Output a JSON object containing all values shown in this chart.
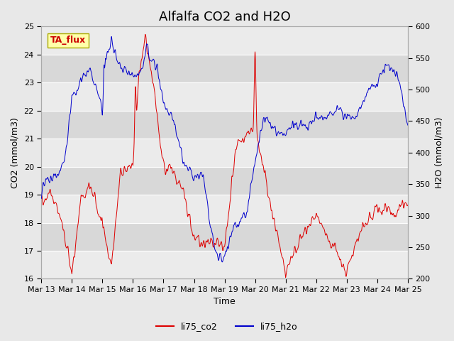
{
  "title": "Alfalfa CO2 and H2O",
  "xlabel": "Time",
  "ylabel_left": "CO2 (mmol/m3)",
  "ylabel_right": "H2O (mmol/m3)",
  "co2_ylim": [
    16.0,
    25.0
  ],
  "h2o_ylim": [
    200,
    600
  ],
  "co2_yticks": [
    16.0,
    17.0,
    18.0,
    19.0,
    20.0,
    21.0,
    22.0,
    23.0,
    24.0,
    25.0
  ],
  "h2o_yticks": [
    200,
    250,
    300,
    350,
    400,
    450,
    500,
    550,
    600
  ],
  "co2_color": "#dd0000",
  "h2o_color": "#0000cc",
  "background_color": "#e8e8e8",
  "plot_bg_color": "#d8d8d8",
  "grid_color": "#ffffff",
  "annotation_text": "TA_flux",
  "annotation_bg": "#ffffaa",
  "annotation_edge": "#aaaa00",
  "legend_co2": "li75_co2",
  "legend_h2o": "li75_h2o",
  "title_fontsize": 13,
  "axis_label_fontsize": 9,
  "tick_fontsize": 8,
  "legend_fontsize": 9,
  "n_points": 2880,
  "seed": 42
}
